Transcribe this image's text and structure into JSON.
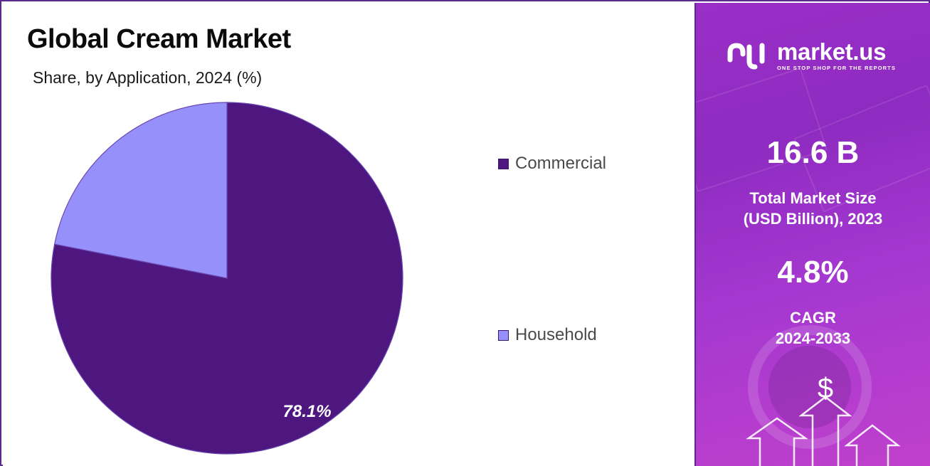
{
  "chart": {
    "title": "Global Cream Market",
    "subtitle": "Share, by Application, 2024 (%)"
  },
  "chart_data": {
    "type": "pie",
    "title": "Global Cream Market",
    "subtitle": "Share, by Application, 2024 (%)",
    "categories": [
      "Commercial",
      "Household"
    ],
    "values": [
      78.1,
      21.9
    ],
    "data_labels": [
      "78.1%",
      ""
    ],
    "colors": [
      "#4e1780",
      "#9690fb"
    ],
    "legend_position": "right"
  },
  "legend": [
    {
      "label": "Commercial",
      "color": "#4e1780"
    },
    {
      "label": "Household",
      "color": "#9690fb"
    }
  ],
  "brand": {
    "name": "market.us",
    "tagline": "ONE STOP SHOP FOR THE REPORTS"
  },
  "stats": {
    "market_size_value": "16.6 B",
    "market_size_label_line1": "Total Market Size",
    "market_size_label_line2": "(USD Billion), 2023",
    "cagr_value": "4.8%",
    "cagr_label_line1": "CAGR",
    "cagr_label_line2": "2024-2033"
  },
  "decor": {
    "dollar_symbol": "$"
  }
}
